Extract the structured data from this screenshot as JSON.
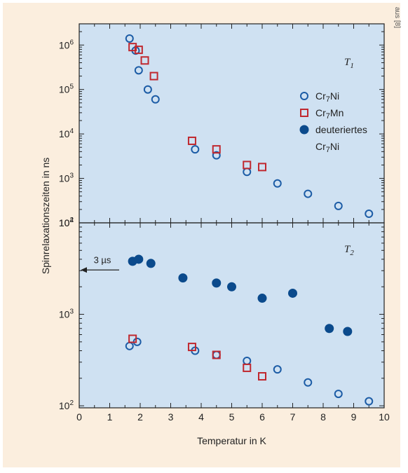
{
  "credit": "aus [8]",
  "colors": {
    "background": "#fbeede",
    "plot": "#cfe1f2",
    "blue": "#1c5ca6",
    "red": "#c0282f",
    "navy": "#0b4a8c"
  },
  "chart_data": [
    {
      "type": "scatter",
      "panel_label": "T",
      "panel_label_sub": "1",
      "x_range": [
        0,
        10
      ],
      "y_scale": "log",
      "y_range": [
        100,
        3000000
      ],
      "y_ticks": [
        {
          "base": "10",
          "exp": "2",
          "value": 100
        },
        {
          "base": "10",
          "exp": "3",
          "value": 1000
        },
        {
          "base": "10",
          "exp": "4",
          "value": 10000
        },
        {
          "base": "10",
          "exp": "5",
          "value": 100000
        },
        {
          "base": "10",
          "exp": "6",
          "value": 1000000
        }
      ],
      "legend": [
        {
          "marker": "open-circle",
          "label": "Cr",
          "sub": "7",
          "rest": "Ni"
        },
        {
          "marker": "open-square",
          "label": "Cr",
          "sub": "7",
          "rest": "Mn"
        },
        {
          "marker": "filled-circle",
          "label": "deuteriertes",
          "line2": "Cr",
          "sub": "7",
          "rest": "Ni"
        }
      ],
      "series": [
        {
          "name": "Cr7Ni",
          "marker": "open-circle",
          "x": [
            1.65,
            1.95,
            2.25,
            2.5,
            1.85,
            3.8,
            4.5,
            5.5,
            6.5,
            7.5,
            8.5,
            9.5
          ],
          "y": [
            1400000,
            270000,
            100000,
            60000,
            750000,
            4500,
            3300,
            1400,
            770,
            450,
            240,
            160
          ]
        },
        {
          "name": "Cr7Mn",
          "marker": "open-square",
          "x": [
            1.75,
            1.95,
            2.15,
            2.45,
            3.7,
            4.5,
            5.5,
            6.0
          ],
          "y": [
            900000,
            780000,
            450000,
            200000,
            7000,
            4500,
            2000,
            1800
          ]
        }
      ]
    },
    {
      "type": "scatter",
      "panel_label": "T",
      "panel_label_sub": "2",
      "x_range": [
        0,
        10
      ],
      "x_ticks": [
        0,
        1,
        2,
        3,
        4,
        5,
        6,
        7,
        8,
        9,
        10
      ],
      "xlabel": "Temperatur in K",
      "ylabel": "Spinrelaxationszeiten in ns",
      "y_scale": "log",
      "y_range": [
        95,
        10000
      ],
      "y_ticks": [
        {
          "base": "10",
          "exp": "2",
          "value": 100
        },
        {
          "base": "10",
          "exp": "3",
          "value": 1000
        },
        {
          "base": "10",
          "exp": "4",
          "value": 10000
        }
      ],
      "annotation": {
        "text": "3 µs",
        "value": 3000
      },
      "series": [
        {
          "name": "Cr7Ni",
          "marker": "open-circle",
          "x": [
            1.65,
            1.9,
            3.8,
            4.5,
            5.5,
            6.5,
            7.5,
            8.5,
            9.5
          ],
          "y": [
            450,
            500,
            400,
            360,
            310,
            250,
            180,
            135,
            112
          ]
        },
        {
          "name": "Cr7Mn",
          "marker": "open-square",
          "x": [
            1.75,
            3.7,
            4.5,
            5.5,
            6.0
          ],
          "y": [
            540,
            440,
            360,
            260,
            210
          ]
        },
        {
          "name": "deuteriertes Cr7Ni",
          "marker": "filled-circle",
          "x": [
            1.75,
            1.95,
            2.35,
            3.4,
            4.5,
            5.0,
            6.0,
            7.0,
            8.2,
            8.8
          ],
          "y": [
            3800,
            4000,
            3600,
            2500,
            2200,
            2000,
            1500,
            1700,
            700,
            650
          ]
        }
      ]
    }
  ]
}
